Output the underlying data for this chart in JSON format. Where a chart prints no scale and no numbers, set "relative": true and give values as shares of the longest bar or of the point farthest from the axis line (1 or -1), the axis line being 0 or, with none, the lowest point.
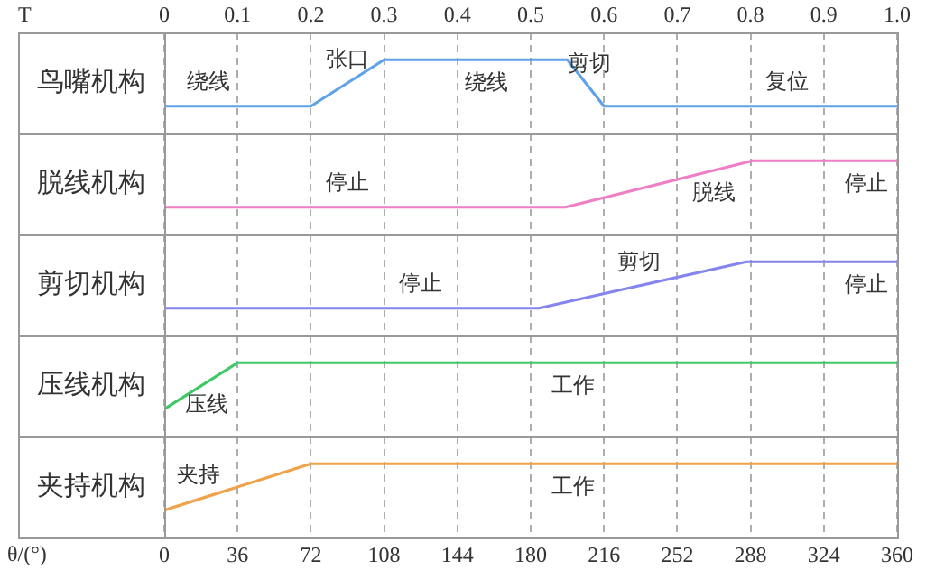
{
  "chart_data": [
    {
      "type": "line",
      "relative": true,
      "ylabel": "鸟嘴机构",
      "xlabel": "T",
      "grid": "x",
      "color": "#5fa2e8",
      "x": [
        0,
        0.2,
        0.3,
        0.55,
        0.6,
        1
      ],
      "values": [
        0.37,
        0.37,
        1,
        1,
        0.37,
        0.37
      ],
      "xlim": [
        0,
        1
      ],
      "xticks": [
        0,
        0.1,
        0.2,
        0.3,
        0.4,
        0.5,
        0.6,
        0.7,
        0.8,
        0.9,
        {
          "value": 1,
          "label": "1.0"
        }
      ],
      "annotations": [
        {
          "text": "绕线",
          "x": 0.06,
          "y": 0.37
        },
        {
          "text": "张口",
          "x": 0.25,
          "y": 0.68
        },
        {
          "text": "绕线",
          "x": 0.44,
          "y": 1
        },
        {
          "text": "剪切",
          "x": 0.58,
          "y": 0.62
        },
        {
          "text": "复位",
          "x": 0.85,
          "y": 0.37
        }
      ]
    },
    {
      "type": "line",
      "relative": true,
      "ylabel": "脱线机构",
      "tick_labels": false,
      "grid": "x",
      "color": "#ee7fc4",
      "x": [
        0,
        197,
        289,
        360
      ],
      "values": [
        0.37,
        0.37,
        1,
        1
      ],
      "xlim": [
        0,
        360
      ],
      "xticks": [
        0,
        36,
        72,
        108,
        144,
        180,
        216,
        252,
        288,
        324,
        360
      ],
      "annotations": [
        {
          "text": "停止",
          "x": 90,
          "y": 0.37
        },
        {
          "text": "脱线",
          "x": 270,
          "y": 0.87
        },
        {
          "text": "停止",
          "x": 345,
          "y": 1
        }
      ]
    },
    {
      "type": "line",
      "relative": true,
      "ylabel": "剪切机构",
      "tick_labels": false,
      "grid": "x",
      "color": "#8585ee",
      "x": [
        0,
        184,
        286,
        360
      ],
      "values": [
        0.37,
        0.37,
        1,
        1
      ],
      "xlim": [
        0,
        360
      ],
      "xticks": [
        0,
        36,
        72,
        108,
        144,
        180,
        216,
        252,
        288,
        324,
        360
      ],
      "annotations": [
        {
          "text": "停止",
          "x": 126,
          "y": 0.37
        },
        {
          "text": "剪切",
          "x": 233,
          "y": 0.67
        },
        {
          "text": "停止",
          "x": 345,
          "y": 1
        }
      ]
    },
    {
      "type": "line",
      "relative": true,
      "ylabel": "压线机构",
      "tick_labels": false,
      "grid": "x",
      "color": "#3fc865",
      "x": [
        0,
        36,
        360
      ],
      "values": [
        0.37,
        1,
        1
      ],
      "xlim": [
        0,
        360
      ],
      "xticks": [
        0,
        36,
        72,
        108,
        144,
        180,
        216,
        252,
        288,
        324,
        360
      ],
      "annotations": [
        {
          "text": "压线",
          "x": 21,
          "y": 0.74
        },
        {
          "text": "工作",
          "x": 201,
          "y": 1
        }
      ]
    },
    {
      "type": "line",
      "relative": true,
      "ylabel": "夹持机构",
      "xlabel": "θ/(°)",
      "tick_labels": "x",
      "grid": "x",
      "color": "#f0a24a",
      "x": [
        0,
        72,
        360
      ],
      "values": [
        0.37,
        1,
        1
      ],
      "xlim": [
        0,
        360
      ],
      "xticks": [
        0,
        36,
        72,
        108,
        144,
        180,
        216,
        252,
        288,
        324,
        360
      ],
      "annotations": [
        {
          "text": "夹持",
          "x": 17,
          "y": 0.52
        },
        {
          "text": "工作",
          "x": 201,
          "y": 1
        }
      ]
    }
  ]
}
